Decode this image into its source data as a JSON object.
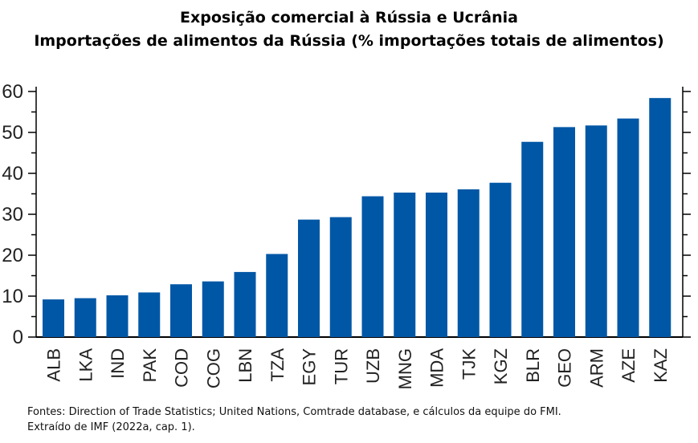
{
  "title": "Exposição comercial à Rússia e Ucrânia",
  "subtitle": "Importações de alimentos da Rússia (% importações totais de alimentos)",
  "source_line1": "Fontes: Direction of Trade Statistics; United Nations, Comtrade database, e cálculos da equipe do FMI.",
  "source_line2": "Extraído de IMF (2022a, cap. 1).",
  "colors": {
    "bar": "#0057a6",
    "axis": "#000000"
  },
  "chart_data": {
    "type": "bar",
    "categories": [
      "ALB",
      "LKA",
      "IND",
      "PAK",
      "COD",
      "COG",
      "LBN",
      "TZA",
      "EGY",
      "TUR",
      "UZB",
      "MNG",
      "MDA",
      "TJK",
      "KGZ",
      "BLR",
      "GEO",
      "ARM",
      "AZE",
      "KAZ"
    ],
    "values": [
      9.2,
      9.5,
      10.2,
      10.9,
      12.9,
      13.6,
      15.9,
      20.3,
      28.7,
      29.3,
      34.4,
      35.3,
      35.3,
      36.1,
      37.7,
      47.7,
      51.3,
      51.7,
      53.4,
      58.4
    ],
    "ylim": [
      0,
      60
    ],
    "yticks": [
      0,
      10,
      20,
      30,
      40,
      50,
      60
    ],
    "grid": false,
    "legend": "none"
  }
}
